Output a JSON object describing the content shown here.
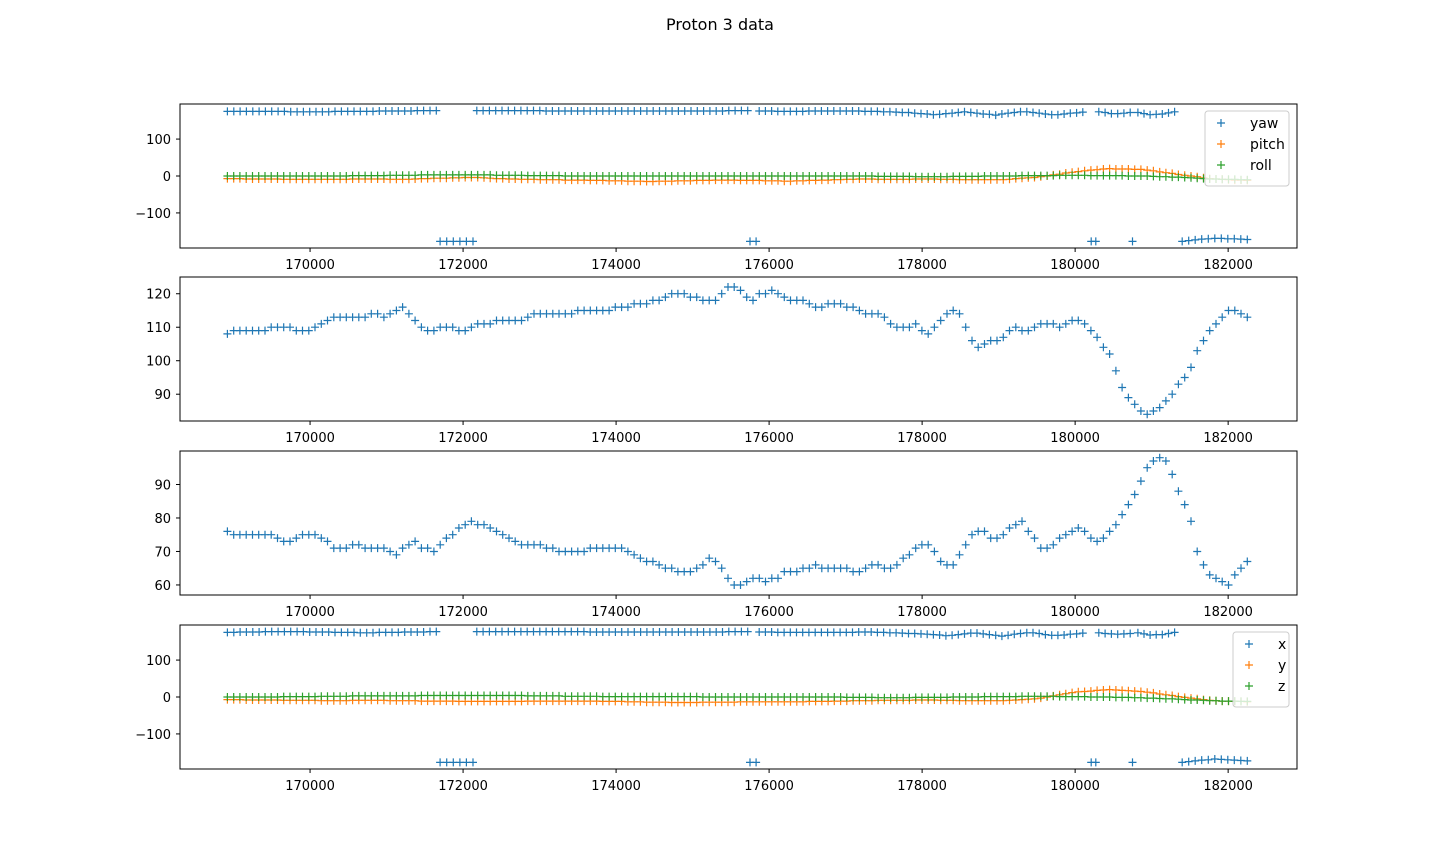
{
  "figure": {
    "title": "Proton 3 data"
  },
  "chart_data": [
    {
      "type": "scatter",
      "marker": "+",
      "xlim": [
        168300,
        182900
      ],
      "ylim": [
        -195,
        195
      ],
      "yticks": [
        -100,
        0,
        100
      ],
      "xticks": [
        170000,
        172000,
        174000,
        176000,
        178000,
        180000,
        182000
      ],
      "legend": {
        "placement": "top-right"
      },
      "grid": false,
      "series": [
        {
          "name": "yaw",
          "color": "#1f77b4",
          "segments": [
            {
              "x_start": 168920,
              "x_end": 171650,
              "y": [
                175,
                175,
                174,
                175,
                176,
                177
              ]
            },
            {
              "x_start": 171700,
              "x_end": 172130,
              "y": [
                -177,
                -177
              ]
            },
            {
              "x_start": 172180,
              "x_end": 175720,
              "y": [
                177,
                177,
                176,
                176,
                176,
                176,
                177
              ]
            },
            {
              "x_start": 175750,
              "x_end": 175830,
              "y": [
                -177,
                -177
              ]
            },
            {
              "x_start": 175870,
              "x_end": 180100,
              "y": [
                176,
                175,
                176,
                176,
                175,
                172,
                166,
                174,
                165,
                175,
                165,
                173
              ]
            },
            {
              "x_start": 180210,
              "x_end": 180270,
              "y": [
                -177,
                -177
              ]
            },
            {
              "x_start": 180310,
              "x_end": 180720,
              "y": [
                174,
                168,
                172
              ]
            },
            {
              "x_start": 180750,
              "x_end": 180750,
              "y": [
                -177
              ]
            },
            {
              "x_start": 180820,
              "x_end": 181300,
              "y": [
                172,
                166,
                168,
                174
              ]
            },
            {
              "x_start": 181400,
              "x_end": 182250,
              "y": [
                -177,
                -172,
                -169,
                -170,
                -172
              ]
            }
          ]
        },
        {
          "name": "pitch",
          "color": "#ff7f0e",
          "segments": [
            {
              "x_start": 168920,
              "x_end": 182250,
              "y": [
                -7,
                -8,
                -9,
                -9,
                -8,
                -9,
                -6,
                -4,
                -8,
                -10,
                -11,
                -13,
                -15,
                -13,
                -11,
                -12,
                -14,
                -11,
                -8,
                -9,
                -8,
                -10,
                -10,
                -4,
                10,
                20,
                18,
                5,
                -8,
                -12
              ]
            }
          ]
        },
        {
          "name": "roll",
          "color": "#2ca02c",
          "segments": [
            {
              "x_start": 168920,
              "x_end": 182250,
              "y": [
                0,
                0,
                0,
                0,
                1,
                2,
                3,
                3,
                2,
                1,
                0,
                0,
                0,
                0,
                0,
                0,
                0,
                0,
                0,
                -1,
                -2,
                -1,
                0,
                1,
                2,
                1,
                0,
                -3,
                -8,
                -10
              ]
            }
          ]
        }
      ]
    },
    {
      "type": "scatter",
      "marker": "+",
      "xlim": [
        168300,
        182900
      ],
      "ylim": [
        82,
        125
      ],
      "yticks": [
        90,
        100,
        110,
        120
      ],
      "xticks": [
        170000,
        172000,
        174000,
        176000,
        178000,
        180000,
        182000
      ],
      "grid": false,
      "series": [
        {
          "color": "#1f77b4",
          "segments": [
            {
              "x_start": 168920,
              "x_end": 182250,
              "y": [
                108,
                109,
                109,
                109,
                109,
                110,
                110,
                109,
                109,
                110,
                112,
                113,
                113,
                113,
                113,
                114,
                113,
                115,
                116,
                113,
                110,
                109,
                110,
                110,
                109,
                110,
                111,
                111,
                112,
                112,
                112,
                113,
                114,
                114,
                114,
                114,
                115,
                115,
                115,
                115,
                116,
                116,
                117,
                117,
                118,
                119,
                120,
                120,
                119,
                118,
                118,
                120,
                123,
                120,
                118,
                120,
                121,
                120,
                118,
                118,
                117,
                116,
                117,
                117,
                116,
                115,
                114,
                114,
                112,
                110,
                110,
                111,
                108,
                110,
                114,
                116,
                110,
                104,
                105,
                106,
                107,
                110,
                109,
                110,
                111,
                111,
                110,
                112,
                112,
                109,
                105,
                101,
                92,
                88,
                85,
                84,
                86,
                89,
                93,
                97,
                104,
                109,
                112,
                115,
                115,
                113
              ]
            }
          ]
        }
      ]
    },
    {
      "type": "scatter",
      "marker": "+",
      "xlim": [
        168300,
        182900
      ],
      "ylim": [
        57,
        100
      ],
      "yticks": [
        60,
        70,
        80,
        90
      ],
      "xticks": [
        170000,
        172000,
        174000,
        176000,
        178000,
        180000,
        182000
      ],
      "grid": false,
      "series": [
        {
          "color": "#1f77b4",
          "segments": [
            {
              "x_start": 168920,
              "x_end": 182250,
              "y": [
                76,
                75,
                75,
                75,
                75,
                74,
                73,
                74,
                75,
                75,
                73,
                71,
                71,
                72,
                71,
                71,
                71,
                69,
                71,
                73,
                71,
                70,
                73,
                75,
                78,
                79,
                78,
                77,
                75,
                73,
                72,
                72,
                72,
                71,
                70,
                70,
                70,
                71,
                71,
                71,
                71,
                70,
                68,
                67,
                66,
                65,
                64,
                64,
                65,
                68,
                67,
                62,
                59,
                61,
                62,
                61,
                62,
                64,
                64,
                65,
                66,
                65,
                65,
                65,
                64,
                65,
                66,
                65,
                65,
                68,
                70,
                73,
                70,
                66,
                66,
                71,
                75,
                76,
                74,
                75,
                78,
                79,
                75,
                71,
                71,
                74,
                76,
                77,
                74,
                73,
                76,
                80,
                84,
                90,
                96,
                98,
                96,
                88,
                82,
                69,
                64,
                61,
                60,
                64,
                67
              ]
            }
          ]
        }
      ]
    },
    {
      "type": "scatter",
      "marker": "+",
      "xlim": [
        168300,
        182900
      ],
      "ylim": [
        -195,
        195
      ],
      "yticks": [
        -100,
        0,
        100
      ],
      "xticks": [
        170000,
        172000,
        174000,
        176000,
        178000,
        180000,
        182000
      ],
      "legend": {
        "placement": "top-right"
      },
      "grid": false,
      "series": [
        {
          "name": "x",
          "color": "#1f77b4",
          "segments": [
            {
              "x_start": 168920,
              "x_end": 171650,
              "y": [
                175,
                176,
                177,
                177,
                176,
                175,
                174,
                175,
                176,
                177
              ]
            },
            {
              "x_start": 171700,
              "x_end": 172130,
              "y": [
                -177,
                -177
              ]
            },
            {
              "x_start": 172180,
              "x_end": 175720,
              "y": [
                177,
                177,
                177,
                176,
                176,
                176,
                177
              ]
            },
            {
              "x_start": 175750,
              "x_end": 175830,
              "y": [
                -177,
                -177
              ]
            },
            {
              "x_start": 175870,
              "x_end": 180100,
              "y": [
                176,
                175,
                175,
                175,
                176,
                174,
                171,
                166,
                174,
                165,
                175,
                166,
                173
              ]
            },
            {
              "x_start": 180210,
              "x_end": 180270,
              "y": [
                -177,
                -177
              ]
            },
            {
              "x_start": 180310,
              "x_end": 180720,
              "y": [
                174,
                170,
                172
              ]
            },
            {
              "x_start": 180750,
              "x_end": 180750,
              "y": [
                -177
              ]
            },
            {
              "x_start": 180820,
              "x_end": 181300,
              "y": [
                174,
                168,
                169,
                175
              ]
            },
            {
              "x_start": 181400,
              "x_end": 182250,
              "y": [
                -177,
                -172,
                -168,
                -170,
                -173
              ]
            }
          ]
        },
        {
          "name": "y",
          "color": "#ff7f0e",
          "segments": [
            {
              "x_start": 168920,
              "x_end": 182250,
              "y": [
                -7,
                -8,
                -9,
                -10,
                -9,
                -10,
                -11,
                -12,
                -12,
                -11,
                -11,
                -12,
                -14,
                -15,
                -14,
                -13,
                -13,
                -12,
                -10,
                -9,
                -8,
                -10,
                -10,
                -5,
                12,
                20,
                15,
                2,
                -10,
                -13
              ]
            }
          ]
        },
        {
          "name": "z",
          "color": "#2ca02c",
          "segments": [
            {
              "x_start": 168920,
              "x_end": 182250,
              "y": [
                0,
                0,
                1,
                2,
                3,
                3,
                4,
                4,
                4,
                3,
                2,
                1,
                1,
                1,
                0,
                0,
                0,
                0,
                -1,
                -2,
                -1,
                0,
                1,
                2,
                1,
                0,
                -2,
                -6,
                -10,
                -12
              ]
            }
          ]
        }
      ]
    }
  ]
}
